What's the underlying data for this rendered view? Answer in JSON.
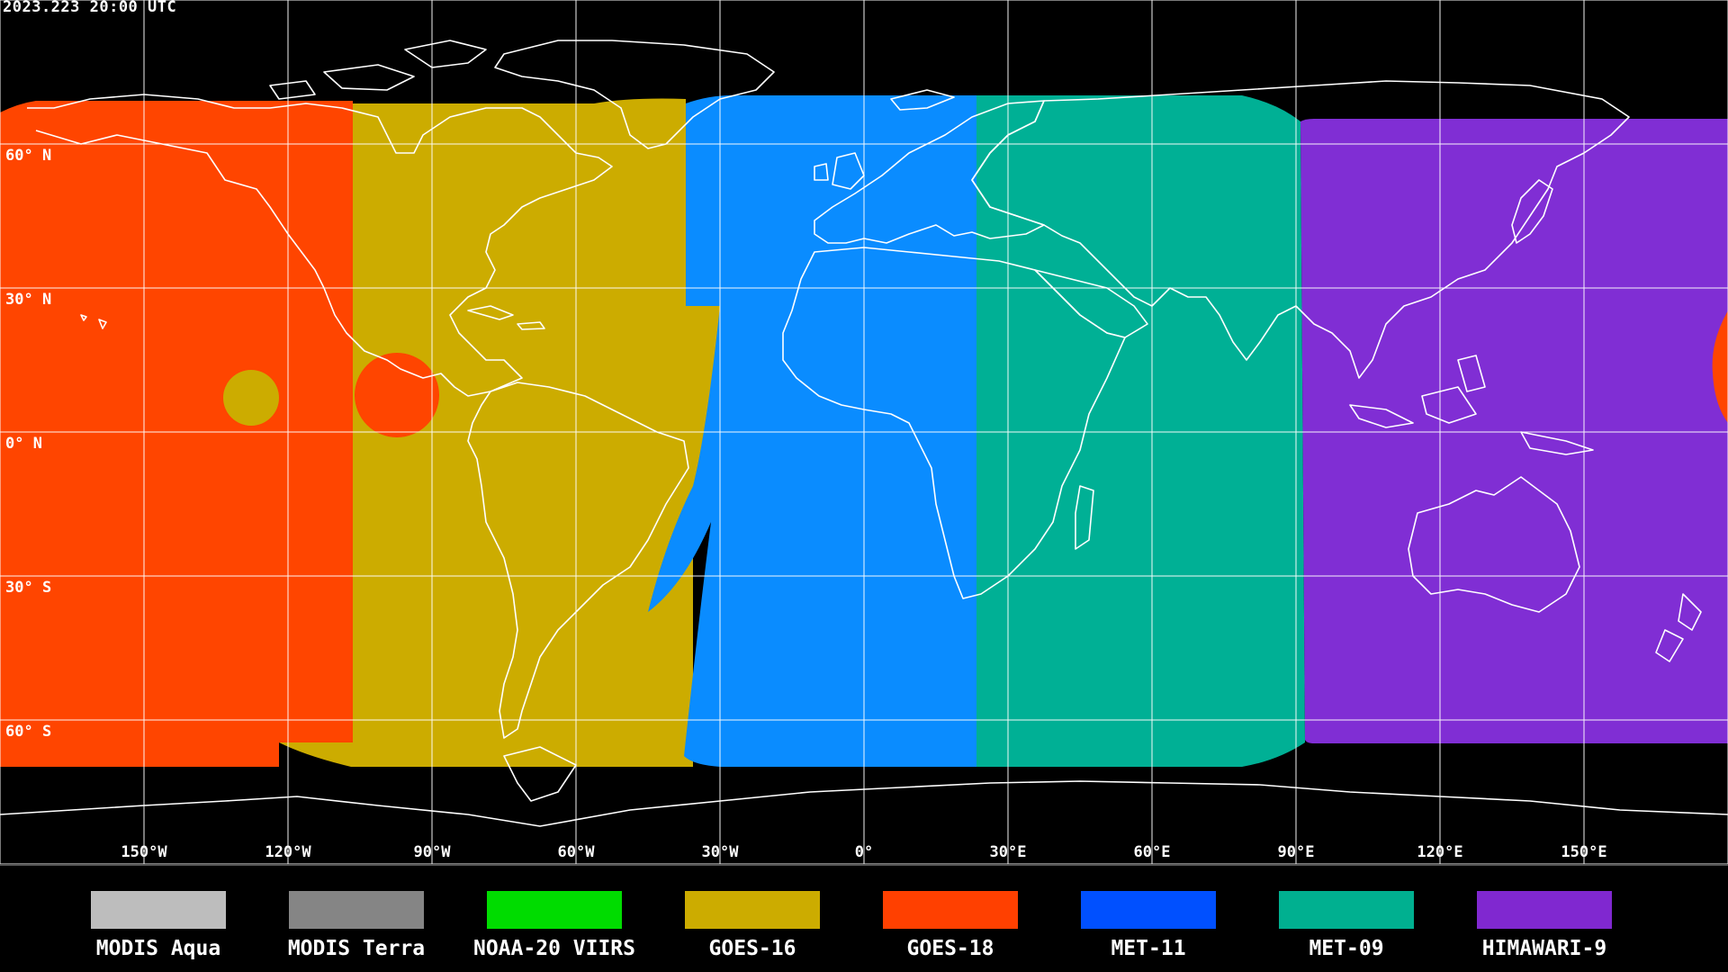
{
  "timestamp": "2023.223 20:00 UTC",
  "lat_labels": [
    "60° N",
    "30° N",
    "0° N",
    "30° S",
    "60° S"
  ],
  "lon_labels": [
    "150°W",
    "120°W",
    "90°W",
    "60°W",
    "30°W",
    "0°",
    "30°E",
    "60°E",
    "90°E",
    "120°E",
    "150°E"
  ],
  "legend": [
    {
      "label": "MODIS Aqua",
      "color": "#bdbdbd"
    },
    {
      "label": "MODIS Terra",
      "color": "#858585"
    },
    {
      "label": "NOAA-20 VIIRS",
      "color": "#00dc00"
    },
    {
      "label": "GOES-16",
      "color": "#ccac00"
    },
    {
      "label": "GOES-18",
      "color": "#ff4000"
    },
    {
      "label": "MET-11",
      "color": "#0050ff"
    },
    {
      "label": "MET-09",
      "color": "#00b090"
    },
    {
      "label": "HIMAWARI-9",
      "color": "#8028d0"
    }
  ],
  "coverage_colors": {
    "goes18": "#ff4500",
    "goes16": "#ccac00",
    "met11": "#0a8cff",
    "met09": "#00b095",
    "himawari9": "#802ed4"
  },
  "coastline_color": "#ffffff",
  "grid_color": "#ffffff"
}
